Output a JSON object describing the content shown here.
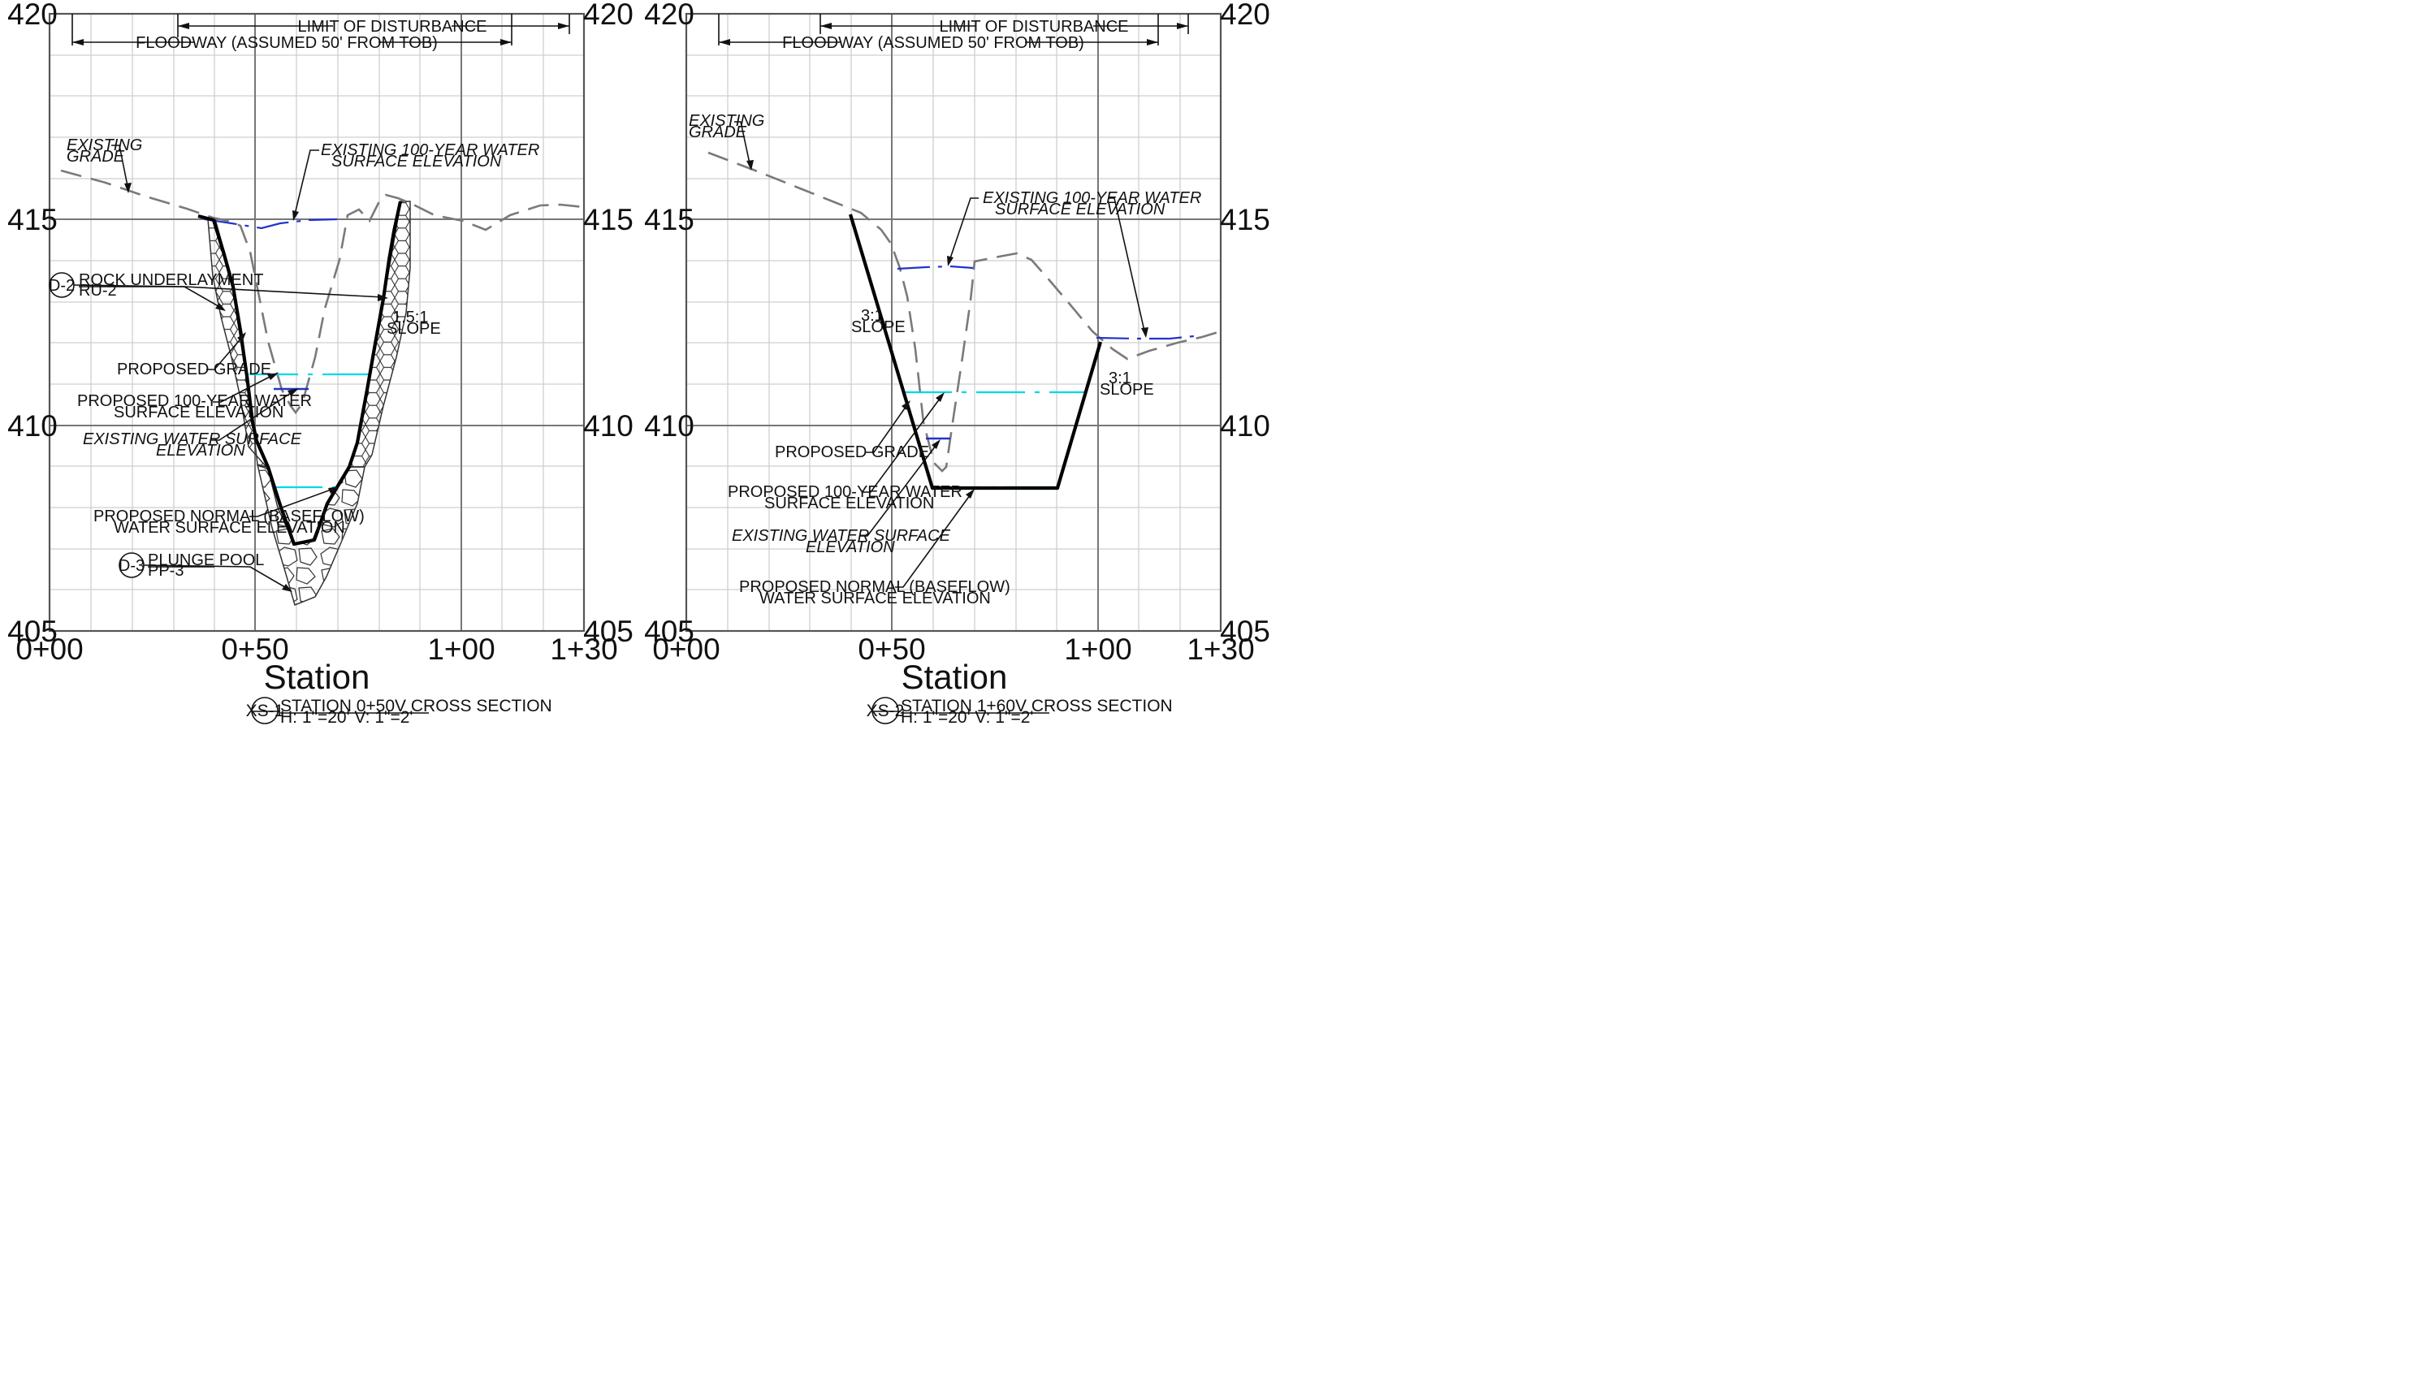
{
  "sections": [
    {
      "id": "xs1",
      "y_ticks_left": [
        "420",
        "415",
        "410",
        "405"
      ],
      "y_ticks_right": [
        "420",
        "415",
        "410",
        "405"
      ],
      "x_ticks": [
        "0+00",
        "0+50",
        "1+00",
        "1+30"
      ],
      "x_axis_label": "Station",
      "dim_limit": "LIMIT OF DISTURBANCE",
      "dim_floodway": "FLOODWAY (ASSUMED 50' FROM TOB)",
      "labels": {
        "existing_grade": [
          "EXISTING",
          "GRADE"
        ],
        "existing_100yr": [
          "EXISTING 100-YEAR WATER",
          "SURFACE ELEVATION"
        ],
        "rock_underlayment": [
          "ROCK UNDERLAYMENT",
          "RU-2"
        ],
        "detail_d2": "D-2",
        "slope": [
          "1.5:1",
          "SLOPE"
        ],
        "proposed_grade": "PROPOSED GRADE",
        "proposed_100yr": [
          "PROPOSED 100-YEAR WATER",
          "SURFACE ELEVATION"
        ],
        "existing_ws": [
          "EXISTING WATER SURFACE",
          "ELEVATION"
        ],
        "proposed_normal": [
          "PROPOSED NORMAL (BASEFLOW)",
          "WATER SURFACE ELEVATION"
        ],
        "detail_d3": "D-3",
        "plunge_pool": [
          "PLUNGE POOL",
          "PP-3"
        ]
      },
      "title_block": {
        "tag": "XS-1",
        "title": "STATION 0+50V CROSS SECTION",
        "scale": "H: 1\"=20' V: 1\"=2'"
      }
    },
    {
      "id": "xs2",
      "y_ticks_left": [
        "420",
        "415",
        "410",
        "405"
      ],
      "y_ticks_right": [
        "420",
        "415",
        "410",
        "405"
      ],
      "x_ticks": [
        "0+00",
        "0+50",
        "1+00",
        "1+30"
      ],
      "x_axis_label": "Station",
      "dim_limit": "LIMIT OF DISTURBANCE",
      "dim_floodway": "FLOODWAY (ASSUMED 50' FROM TOB)",
      "labels": {
        "existing_grade": [
          "EXISTING",
          "GRADE"
        ],
        "existing_100yr": [
          "EXISTING 100-YEAR WATER",
          "SURFACE ELEVATION"
        ],
        "slope_left": [
          "3:1",
          "SLOPE"
        ],
        "slope_right": [
          "3:1",
          "SLOPE"
        ],
        "proposed_grade": "PROPOSED GRADE",
        "proposed_100yr": [
          "PROPOSED 100-YEAR WATER",
          "SURFACE ELEVATION"
        ],
        "existing_ws": [
          "EXISTING WATER SURFACE",
          "ELEVATION"
        ],
        "proposed_normal": [
          "PROPOSED NORMAL (BASEFLOW)",
          "WATER SURFACE ELEVATION"
        ]
      },
      "title_block": {
        "tag": "XS-2",
        "title": "STATION 1+60V CROSS SECTION",
        "scale": "H: 1\"=20' V: 1\"=2'"
      }
    }
  ],
  "colors": {
    "existing_grade": "#7a7a7a",
    "proposed_grade": "#000000",
    "water_proposed": "#00d7e8",
    "water_existing": "#2233cc"
  }
}
